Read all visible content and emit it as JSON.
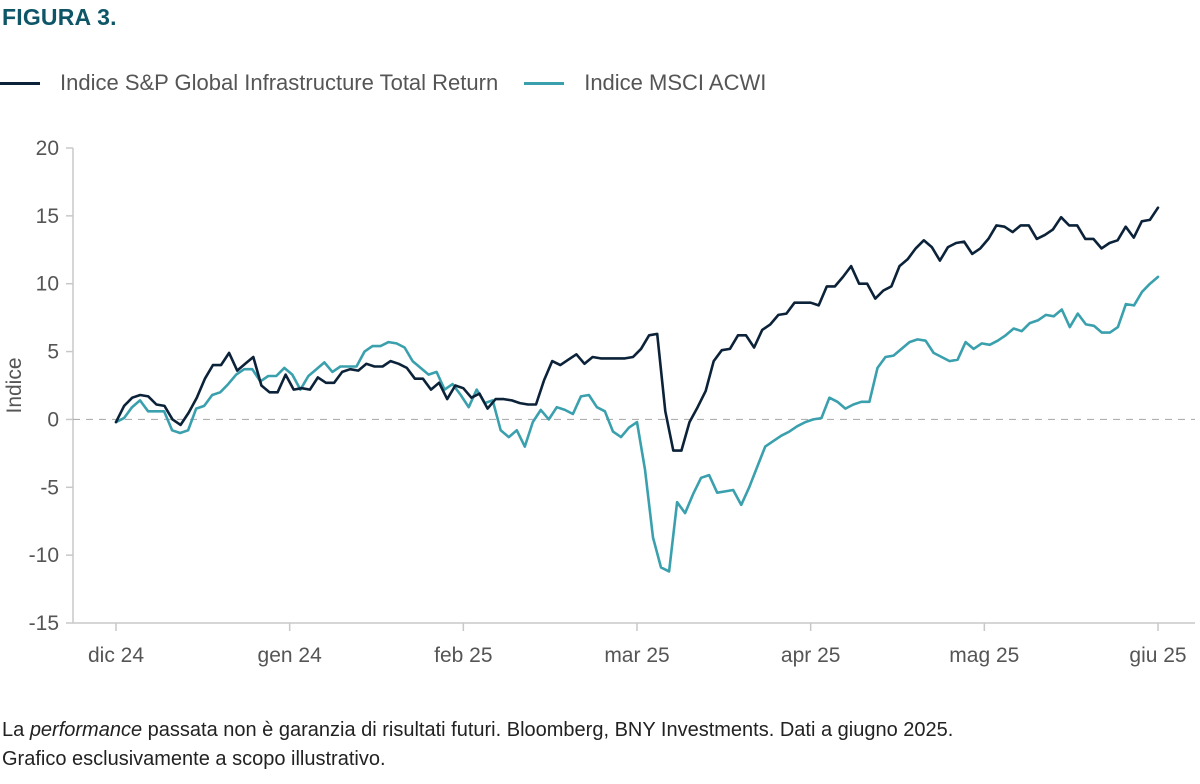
{
  "figure_label": "FIGURA 3.",
  "footnote": {
    "before": "La ",
    "italic": "performance",
    "after": " passata non è garanzia di risultati futuri. Bloomberg, BNY Investments. Dati a giugno 2025.",
    "line2": "Grafico esclusivamente a scopo illustrativo."
  },
  "colors": {
    "series1": "#0b2239",
    "series2": "#3aa0ad",
    "axis": "#c8c8c8",
    "zero_line": "#b0b0b0"
  },
  "chart_data": {
    "type": "line",
    "title": "",
    "xlabel": "",
    "ylabel": "Indice",
    "ylim": [
      -15,
      20
    ],
    "yticks": [
      20,
      15,
      10,
      5,
      0,
      -5,
      -10,
      -15
    ],
    "xticks": [
      "dic 24",
      "gen 24",
      "feb 25",
      "mar 25",
      "apr 25",
      "mag 25",
      "giu 25"
    ],
    "grid": false,
    "zero_line": "dashed",
    "legend_position": "top-left",
    "series": [
      {
        "name": "Indice S&P Global Infrastructure Total Return",
        "values": [
          -0.2,
          1.0,
          1.6,
          1.8,
          1.7,
          1.1,
          1.0,
          0.0,
          -0.4,
          0.5,
          1.6,
          3.0,
          4.0,
          4.0,
          4.9,
          3.6,
          4.1,
          4.6,
          2.5,
          2.0,
          2.0,
          3.3,
          2.2,
          2.3,
          2.2,
          3.1,
          2.7,
          2.7,
          3.5,
          3.7,
          3.6,
          4.1,
          3.9,
          3.9,
          4.3,
          4.1,
          3.8,
          3.0,
          3.0,
          2.2,
          2.7,
          1.5,
          2.5,
          2.3,
          1.6,
          1.9,
          0.8,
          1.5,
          1.5,
          1.4,
          1.2,
          1.1,
          1.1,
          2.9,
          4.3,
          4.0,
          4.4,
          4.8,
          4.1,
          4.6,
          4.5,
          4.5,
          4.5,
          4.5,
          4.6,
          5.2,
          6.2,
          6.3,
          0.6,
          -2.3,
          -2.3,
          -0.2,
          0.9,
          2.1,
          4.3,
          5.1,
          5.2,
          6.2,
          6.2,
          5.3,
          6.6,
          7.0,
          7.7,
          7.8,
          8.6,
          8.6,
          8.6,
          8.4,
          9.8,
          9.8,
          10.5,
          11.3,
          10.0,
          10.0,
          8.9,
          9.5,
          9.8,
          11.3,
          11.8,
          12.6,
          13.2,
          12.7,
          11.7,
          12.7,
          13.0,
          13.1,
          12.2,
          12.6,
          13.3,
          14.3,
          14.2,
          13.8,
          14.3,
          14.3,
          13.3,
          13.6,
          14.0,
          14.9,
          14.3,
          14.3,
          13.3,
          13.3,
          12.6,
          13.0,
          13.2,
          14.2,
          13.4,
          14.6,
          14.7,
          15.6
        ]
      },
      {
        "name": "Indice MSCI ACWI",
        "values": [
          -0.2,
          0.1,
          0.9,
          1.4,
          0.6,
          0.6,
          0.6,
          -0.8,
          -1.0,
          -0.8,
          0.8,
          1.0,
          1.8,
          2.0,
          2.6,
          3.3,
          3.7,
          3.7,
          2.8,
          3.2,
          3.2,
          3.8,
          3.3,
          2.2,
          3.2,
          3.7,
          4.2,
          3.5,
          3.9,
          3.9,
          3.9,
          5.0,
          5.4,
          5.4,
          5.7,
          5.6,
          5.3,
          4.3,
          3.8,
          3.3,
          3.5,
          2.2,
          2.6,
          1.8,
          0.9,
          2.2,
          1.2,
          1.4,
          -0.8,
          -1.3,
          -0.8,
          -2.0,
          -0.2,
          0.7,
          0.0,
          0.9,
          0.7,
          0.4,
          1.7,
          1.8,
          0.9,
          0.6,
          -0.9,
          -1.3,
          -0.6,
          -0.2,
          -3.7,
          -8.7,
          -10.9,
          -11.2,
          -6.1,
          -6.9,
          -5.5,
          -4.3,
          -4.1,
          -5.4,
          -5.3,
          -5.2,
          -6.3,
          -5.0,
          -3.5,
          -2.0,
          -1.6,
          -1.2,
          -0.9,
          -0.5,
          -0.2,
          0.0,
          0.1,
          1.6,
          1.3,
          0.8,
          1.1,
          1.3,
          1.3,
          3.8,
          4.6,
          4.7,
          5.2,
          5.7,
          5.9,
          5.8,
          4.9,
          4.6,
          4.3,
          4.4,
          5.7,
          5.2,
          5.6,
          5.5,
          5.8,
          6.2,
          6.7,
          6.5,
          7.1,
          7.3,
          7.7,
          7.6,
          8.1,
          6.8,
          7.8,
          7.0,
          6.9,
          6.4,
          6.4,
          6.8,
          8.5,
          8.4,
          9.4,
          10.0,
          10.5
        ]
      }
    ]
  }
}
